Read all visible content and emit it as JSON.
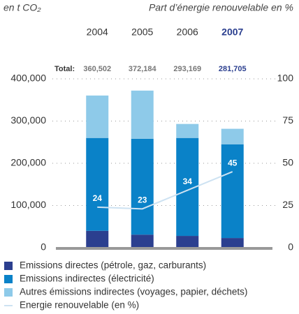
{
  "chart_data": {
    "type": "bar",
    "subtitle_left": "en t CO₂",
    "subtitle_right": "Part d’énergie renouvelable en %",
    "categories": [
      "2004",
      "2005",
      "2006",
      "2007"
    ],
    "highlight_color": "#2b3f8f",
    "total_label": "Total:",
    "totals": {
      "values": [
        360502,
        372184,
        293169,
        281705
      ],
      "value_labels": [
        "360,502",
        "372,184",
        "293,169",
        "281,705"
      ]
    },
    "series": [
      {
        "name": "Emissions directes (pétrole, gaz, carburants)",
        "color": "#2b3f8f",
        "values": [
          40000,
          31000,
          28000,
          23000
        ]
      },
      {
        "name": "Emissions indirectes (électricité)",
        "color": "#0a82c8",
        "values": [
          220000,
          227000,
          232000,
          222000
        ]
      },
      {
        "name": "Autres émissions indirectes (voyages, papier, déchets)",
        "color": "#8ecae9",
        "values": [
          100502,
          114184,
          33169,
          36705
        ]
      },
      {
        "name": "Energie renouvelable (en %)",
        "color": "#cde2f2",
        "type": "line",
        "axis": "y2",
        "values": [
          24,
          23,
          34,
          45
        ]
      }
    ],
    "ylim": [
      0,
      400000
    ],
    "yticks": [
      0,
      {
        "value": 100000,
        "label": "100,000"
      },
      {
        "value": 200000,
        "label": "200,000"
      },
      {
        "value": 300000,
        "label": "300,000"
      },
      {
        "value": 400000,
        "label": "400,000"
      }
    ],
    "y2lim": [
      0,
      100
    ],
    "y2ticks": [
      0,
      25,
      50,
      75,
      100
    ],
    "grid": true
  }
}
